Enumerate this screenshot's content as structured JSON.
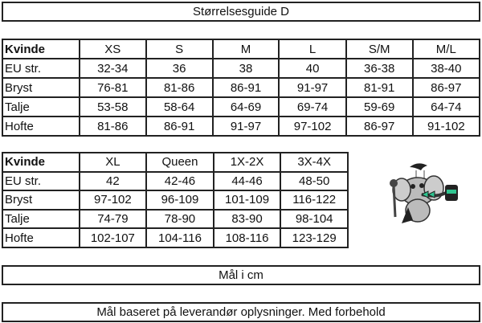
{
  "title": "Størrelsesguide D",
  "table1": {
    "header": [
      "Kvinde",
      "XS",
      "S",
      "M",
      "L",
      "S/M",
      "M/L"
    ],
    "rows": [
      [
        "EU str.",
        "32-34",
        "36",
        "38",
        "40",
        "36-38",
        "38-40"
      ],
      [
        "Bryst",
        "76-81",
        "81-86",
        "86-91",
        "91-97",
        "81-91",
        "86-97"
      ],
      [
        "Talje",
        "53-58",
        "58-64",
        "64-69",
        "69-74",
        "59-69",
        "64-74"
      ],
      [
        "Hofte",
        "81-86",
        "86-91",
        "91-97",
        "97-102",
        "86-97",
        "91-102"
      ]
    ]
  },
  "table2": {
    "header": [
      "Kvinde",
      "XL",
      "Queen",
      "1X-2X",
      "3X-4X"
    ],
    "rows": [
      [
        "EU str.",
        "42",
        "42-46",
        "44-46",
        "48-50"
      ],
      [
        "Bryst",
        "97-102",
        "96-109",
        "101-109",
        "116-122"
      ],
      [
        "Talje",
        "74-79",
        "78-90",
        "83-90",
        "98-104"
      ],
      [
        "Hofte",
        "102-107",
        "104-116",
        "108-116",
        "123-129"
      ]
    ]
  },
  "mascot": {
    "icon": "elephant-magician-mascot",
    "accent_color": "#2fc48f"
  },
  "unit_note": "Mål i cm",
  "disclaimer": "Mål baseret på leverandør oplysninger. Med forbehold"
}
